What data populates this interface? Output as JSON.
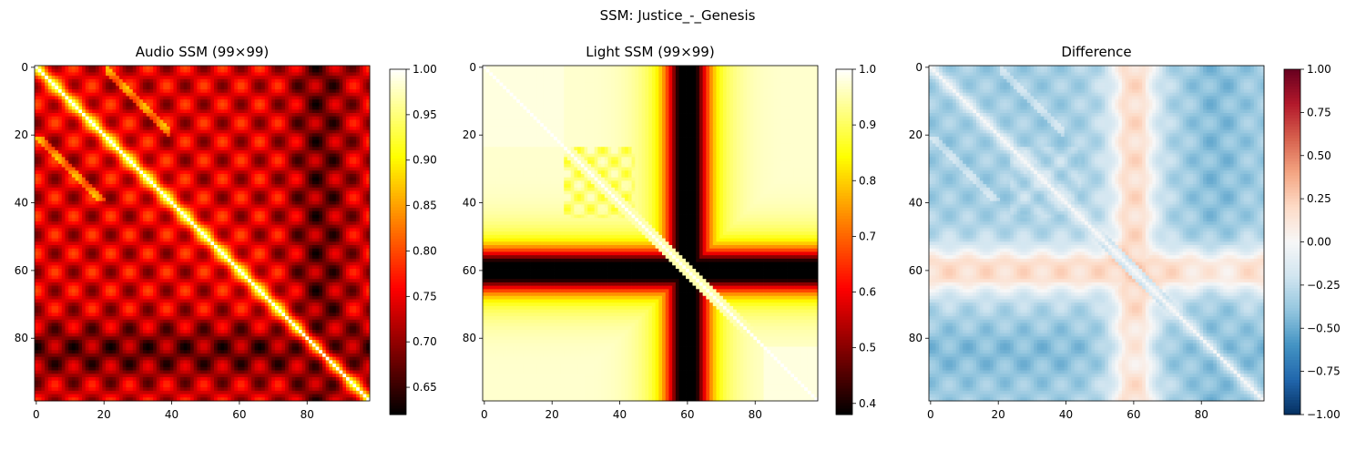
{
  "figure": {
    "suptitle": "SSM: Justice_-_Genesis"
  },
  "chart_data": [
    {
      "type": "heatmap",
      "title": "Audio SSM (99×99)",
      "n": 99,
      "colormap": "hot",
      "x_ticks": [
        "0",
        "20",
        "40",
        "60",
        "80"
      ],
      "y_ticks": [
        "0",
        "20",
        "40",
        "60",
        "80"
      ],
      "colorbar": {
        "range": [
          0.62,
          1.0
        ],
        "ticks": [
          "0.65",
          "0.70",
          "0.75",
          "0.80",
          "0.85",
          "0.90",
          "0.95",
          "1.00"
        ],
        "tick_values": [
          0.65,
          0.7,
          0.75,
          0.8,
          0.85,
          0.9,
          0.95,
          1.0
        ]
      }
    },
    {
      "type": "heatmap",
      "title": "Light SSM (99×99)",
      "n": 99,
      "colormap": "hot",
      "x_ticks": [
        "0",
        "20",
        "40",
        "60",
        "80"
      ],
      "y_ticks": [
        "0",
        "20",
        "40",
        "60",
        "80"
      ],
      "colorbar": {
        "range": [
          0.38,
          1.0
        ],
        "ticks": [
          "0.4",
          "0.5",
          "0.6",
          "0.7",
          "0.8",
          "0.9",
          "1.0"
        ],
        "tick_values": [
          0.4,
          0.5,
          0.6,
          0.7,
          0.8,
          0.9,
          1.0
        ]
      }
    },
    {
      "type": "heatmap",
      "title": "Difference",
      "n": 99,
      "colormap": "RdBu_r",
      "x_ticks": [
        "0",
        "20",
        "40",
        "60",
        "80"
      ],
      "y_ticks": [
        "0",
        "20",
        "40",
        "60",
        "80"
      ],
      "colorbar": {
        "range": [
          -1.0,
          1.0
        ],
        "ticks": [
          "−1.00",
          "−0.75",
          "−0.50",
          "−0.25",
          "0.00",
          "0.25",
          "0.50",
          "0.75",
          "1.00"
        ],
        "tick_values": [
          -1.0,
          -0.75,
          -0.5,
          -0.25,
          0.0,
          0.25,
          0.5,
          0.75,
          1.0
        ]
      }
    }
  ]
}
